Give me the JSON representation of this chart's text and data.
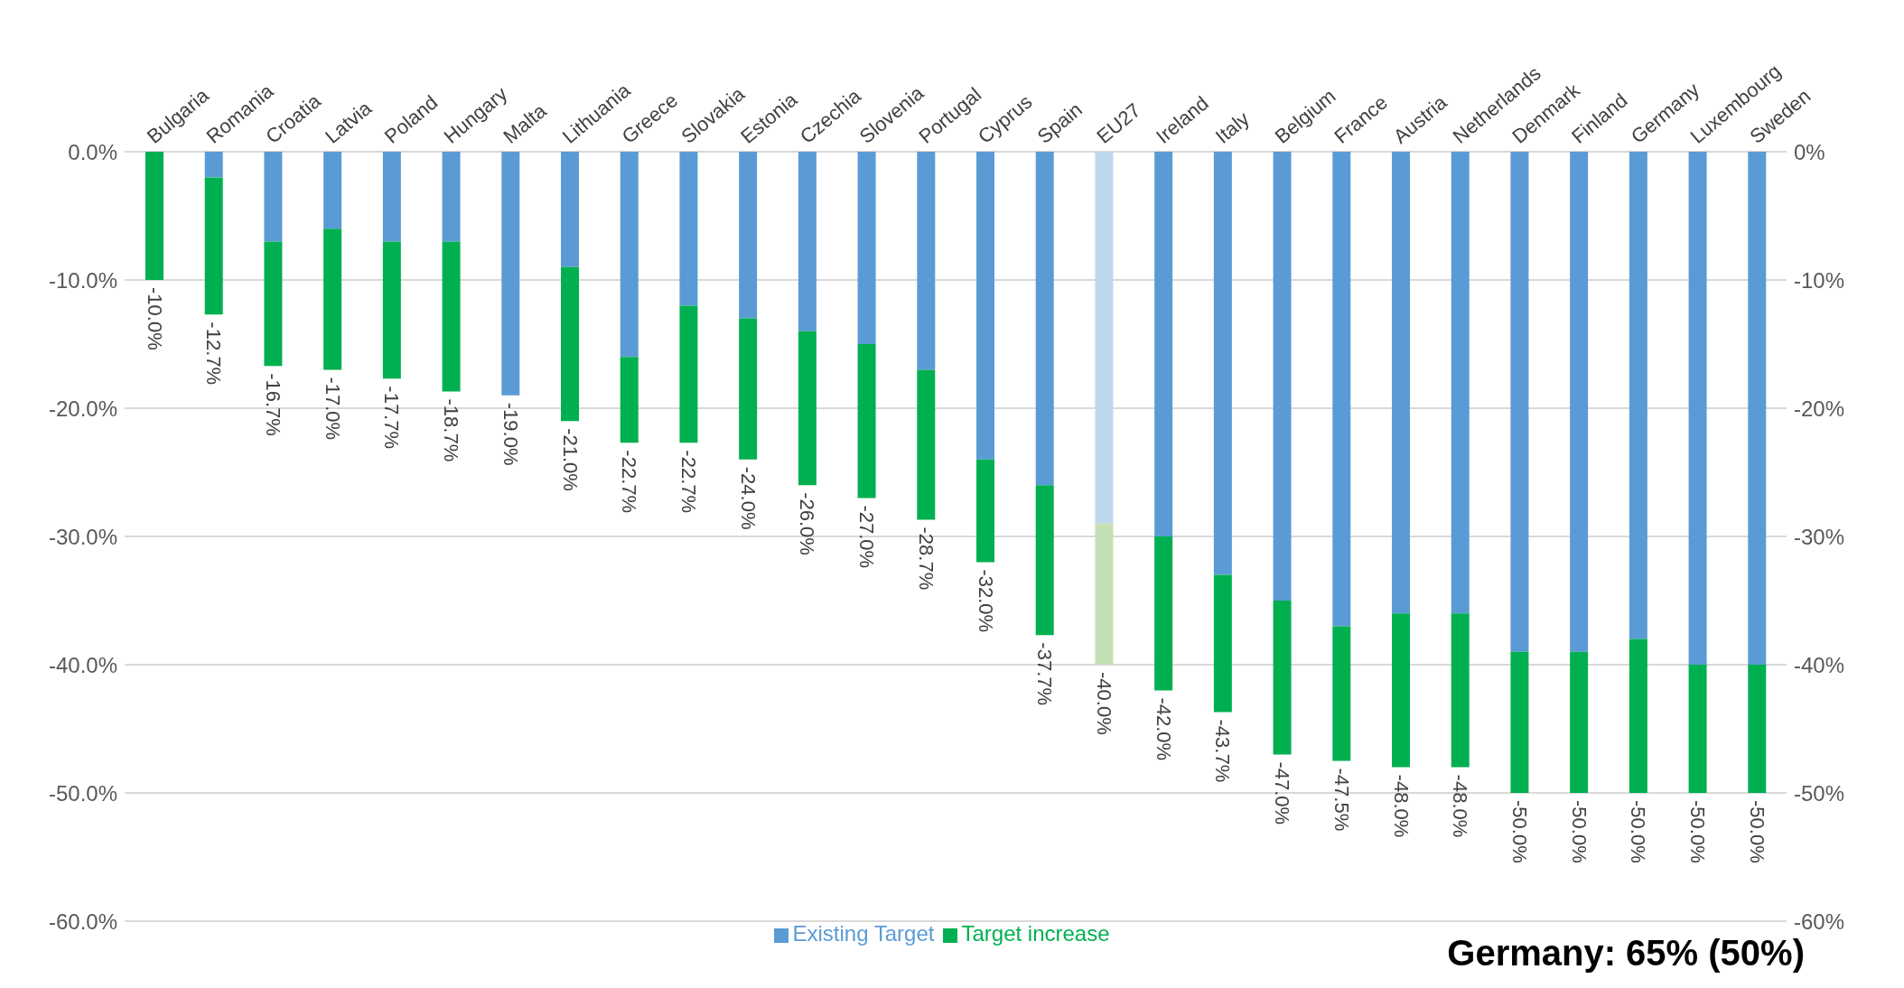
{
  "chart_data": {
    "type": "bar",
    "stacked": true,
    "categories": [
      "Bulgaria",
      "Romania",
      "Croatia",
      "Latvia",
      "Poland",
      "Hungary",
      "Malta",
      "Lithuania",
      "Greece",
      "Slovakia",
      "Estonia",
      "Czechia",
      "Slovenia",
      "Portugal",
      "Cyprus",
      "Spain",
      "EU27",
      "Ireland",
      "Italy",
      "Belgium",
      "France",
      "Austria",
      "Netherlands",
      "Denmark",
      "Finland",
      "Germany",
      "Luxembourg",
      "Sweden"
    ],
    "series": [
      {
        "name": "Existing Target",
        "color": "#5b9bd5",
        "colors": [
          "#5b9bd5",
          "#5b9bd5",
          "#5b9bd5",
          "#5b9bd5",
          "#5b9bd5",
          "#5b9bd5",
          "#5b9bd5",
          "#5b9bd5",
          "#5b9bd5",
          "#5b9bd5",
          "#5b9bd5",
          "#5b9bd5",
          "#5b9bd5",
          "#5b9bd5",
          "#5b9bd5",
          "#5b9bd5",
          "#bdd7ee",
          "#5b9bd5",
          "#5b9bd5",
          "#5b9bd5",
          "#5b9bd5",
          "#5b9bd5",
          "#5b9bd5",
          "#5b9bd5",
          "#5b9bd5",
          "#5b9bd5",
          "#5b9bd5",
          "#5b9bd5"
        ],
        "values": [
          0,
          -2,
          -7,
          -6,
          -7,
          -7,
          -19,
          -9,
          -16,
          -12,
          -13,
          -14,
          -15,
          -17,
          -24,
          -26,
          -29,
          -30,
          -33,
          -35,
          -37,
          -36,
          -36,
          -39,
          -39,
          -38,
          -40,
          -40
        ]
      },
      {
        "name": "Target increase",
        "color": "#00b050",
        "colors": [
          "#00b050",
          "#00b050",
          "#00b050",
          "#00b050",
          "#00b050",
          "#00b050",
          "#00b050",
          "#00b050",
          "#00b050",
          "#00b050",
          "#00b050",
          "#00b050",
          "#00b050",
          "#00b050",
          "#00b050",
          "#00b050",
          "#c5e0b4",
          "#00b050",
          "#00b050",
          "#00b050",
          "#00b050",
          "#00b050",
          "#00b050",
          "#00b050",
          "#00b050",
          "#00b050",
          "#00b050",
          "#00b050"
        ],
        "values": [
          -10,
          -10.7,
          -9.7,
          -11,
          -10.7,
          -11.7,
          0,
          -12,
          -6.7,
          -10.7,
          -11,
          -12,
          -12,
          -11.7,
          -8,
          -11.7,
          -11,
          -12,
          -10.7,
          -12,
          -10.5,
          -12,
          -12,
          -11,
          -11,
          -12,
          -10,
          -10
        ]
      }
    ],
    "totals": [
      "-10.0%",
      "-12.7%",
      "-16.7%",
      "-17.0%",
      "-17.7%",
      "-18.7%",
      "-19.0%",
      "-21.0%",
      "-22.7%",
      "-22.7%",
      "-24.0%",
      "-26.0%",
      "-27.0%",
      "-28.7%",
      "-32.0%",
      "-37.7%",
      "-40.0%",
      "-42.0%",
      "-43.7%",
      "-47.0%",
      "-47.5%",
      "-48.0%",
      "-48.0%",
      "-50.0%",
      "-50.0%",
      "-50.0%",
      "-50.0%",
      "-50.0%"
    ],
    "ylim": [
      -60,
      0
    ],
    "yticks": [
      {
        "value": -60,
        "label": "-60.0%"
      },
      {
        "value": -50,
        "label": "-50.0%"
      },
      {
        "value": -40,
        "label": "-40.0%"
      },
      {
        "value": -30,
        "label": "-30.0%"
      },
      {
        "value": -20,
        "label": "-20.0%"
      },
      {
        "value": -10,
        "label": "-10.0%"
      },
      {
        "value": 0,
        "label": "0.0%"
      }
    ],
    "y2lim": [
      -60,
      0
    ],
    "y2ticks": [
      {
        "value": -60,
        "label": "-60%"
      },
      {
        "value": -50,
        "label": "-50%"
      },
      {
        "value": -40,
        "label": "-40%"
      },
      {
        "value": -30,
        "label": "-30%"
      },
      {
        "value": -20,
        "label": "-20%"
      },
      {
        "value": -10,
        "label": "-10%"
      },
      {
        "value": 0,
        "label": "0%"
      }
    ],
    "grid": "y",
    "legend": "bottom",
    "annotations": [
      "Germany: 65% (50%)"
    ]
  }
}
